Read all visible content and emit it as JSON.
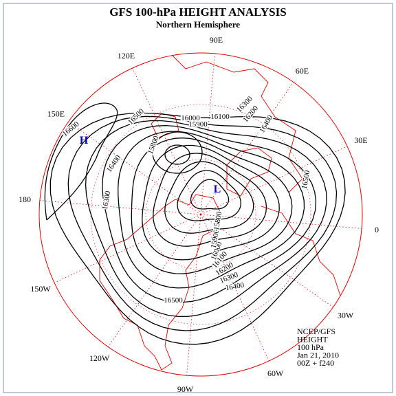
{
  "title": "GFS 100-hPa HEIGHT ANALYSIS",
  "subtitle": "Northern Hemisphere",
  "longitude_labels": [
    "0",
    "30E",
    "60E",
    "90E",
    "120E",
    "150E",
    "180",
    "150W",
    "120W",
    "90W",
    "60W",
    "30W"
  ],
  "contour_labels": [
    16600,
    16500,
    16400,
    16300,
    16000,
    15900,
    16100,
    16200,
    16300,
    16400,
    16500,
    15800,
    16500,
    16400,
    16300,
    16200,
    16100,
    16000,
    15900,
    15800
  ],
  "highs": [
    "H"
  ],
  "lows": [
    "L"
  ],
  "info": [
    "NCEP/GFS",
    "HEIGHT",
    "100 hPa",
    "Jan 21, 2010",
    "00Z + f240"
  ]
}
